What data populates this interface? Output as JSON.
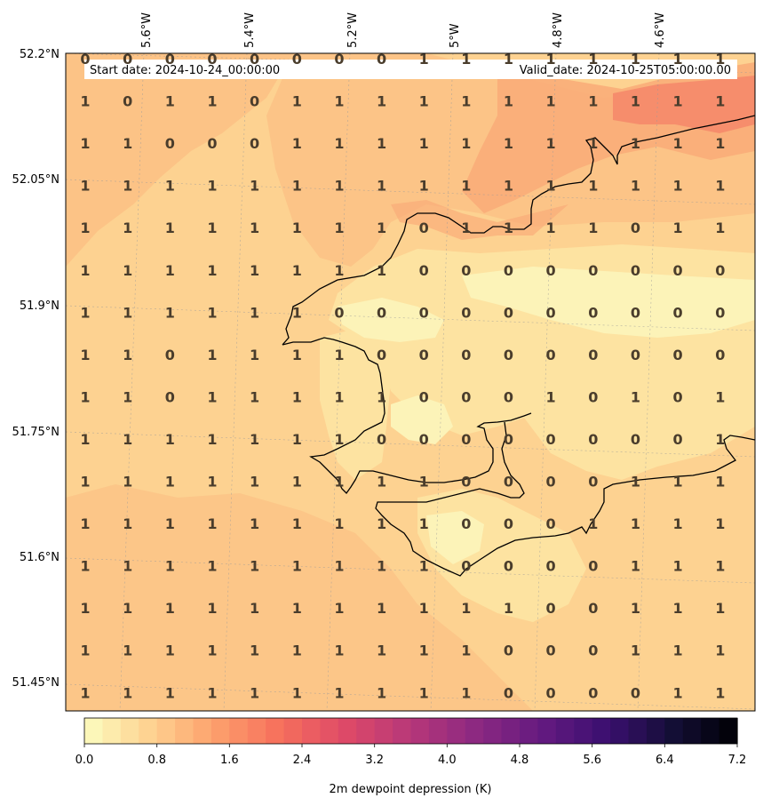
{
  "map": {
    "start_label": "Start date: 2024-10-24_00:00:00",
    "valid_label": "Valid_date: 2024-10-25T05:00:00.00",
    "lon_labels": [
      "5.6°W",
      "5.4°W",
      "5.2°W",
      "5°W",
      "4.8°W",
      "4.6°W"
    ],
    "lat_labels": [
      "52.2°N",
      "52.05°N",
      "51.9°N",
      "51.75°N",
      "51.6°N",
      "51.45°N"
    ],
    "field_colors": [
      "#fcf3b8",
      "#fde3a1",
      "#fdd291",
      "#fbc184",
      "#f9ad79",
      "#f5876a"
    ],
    "coast_color": "#000000"
  },
  "colorbar": {
    "title": "2m dewpoint depression (K)",
    "ticks": [
      "0.0",
      "0.8",
      "1.6",
      "2.4",
      "3.2",
      "4.0",
      "4.8",
      "5.6",
      "6.4",
      "7.2"
    ],
    "range": [
      0,
      7.2
    ],
    "colormap": "magma_r"
  },
  "chart_data": {
    "type": "heatmap",
    "variable": "2m dewpoint depression (K)",
    "grid_values": [
      [
        0,
        0,
        0,
        0,
        0,
        0,
        0,
        0,
        1,
        1,
        1,
        1,
        1,
        1,
        1,
        1
      ],
      [
        1,
        0,
        1,
        1,
        0,
        1,
        1,
        1,
        1,
        1,
        1,
        1,
        1,
        1,
        1,
        1
      ],
      [
        1,
        1,
        0,
        0,
        0,
        1,
        1,
        1,
        1,
        1,
        1,
        1,
        1,
        1,
        1,
        1
      ],
      [
        1,
        1,
        1,
        1,
        1,
        1,
        1,
        1,
        1,
        1,
        1,
        1,
        1,
        1,
        1,
        1
      ],
      [
        1,
        1,
        1,
        1,
        1,
        1,
        1,
        1,
        0,
        1,
        1,
        1,
        1,
        0,
        1,
        1
      ],
      [
        1,
        1,
        1,
        1,
        1,
        1,
        1,
        1,
        0,
        0,
        0,
        0,
        0,
        0,
        0,
        0
      ],
      [
        1,
        1,
        1,
        1,
        1,
        1,
        0,
        0,
        0,
        0,
        0,
        0,
        0,
        0,
        0,
        0
      ],
      [
        1,
        1,
        0,
        1,
        1,
        1,
        1,
        0,
        0,
        0,
        0,
        0,
        0,
        0,
        0,
        0
      ],
      [
        1,
        1,
        0,
        1,
        1,
        1,
        1,
        1,
        0,
        0,
        0,
        1,
        0,
        1,
        0,
        1
      ],
      [
        1,
        1,
        1,
        1,
        1,
        1,
        1,
        0,
        0,
        0,
        0,
        0,
        0,
        0,
        0,
        1
      ],
      [
        1,
        1,
        1,
        1,
        1,
        1,
        1,
        1,
        1,
        0,
        0,
        0,
        0,
        1,
        1,
        1
      ],
      [
        1,
        1,
        1,
        1,
        1,
        1,
        1,
        1,
        1,
        0,
        0,
        0,
        1,
        1,
        1,
        1
      ],
      [
        1,
        1,
        1,
        1,
        1,
        1,
        1,
        1,
        1,
        0,
        0,
        0,
        0,
        1,
        1,
        1
      ],
      [
        1,
        1,
        1,
        1,
        1,
        1,
        1,
        1,
        1,
        1,
        1,
        0,
        0,
        1,
        1,
        1
      ],
      [
        1,
        1,
        1,
        1,
        1,
        1,
        1,
        1,
        1,
        1,
        0,
        0,
        0,
        1,
        1,
        1
      ],
      [
        1,
        1,
        1,
        1,
        1,
        1,
        1,
        1,
        1,
        1,
        0,
        0,
        0,
        0,
        1,
        1
      ]
    ]
  }
}
